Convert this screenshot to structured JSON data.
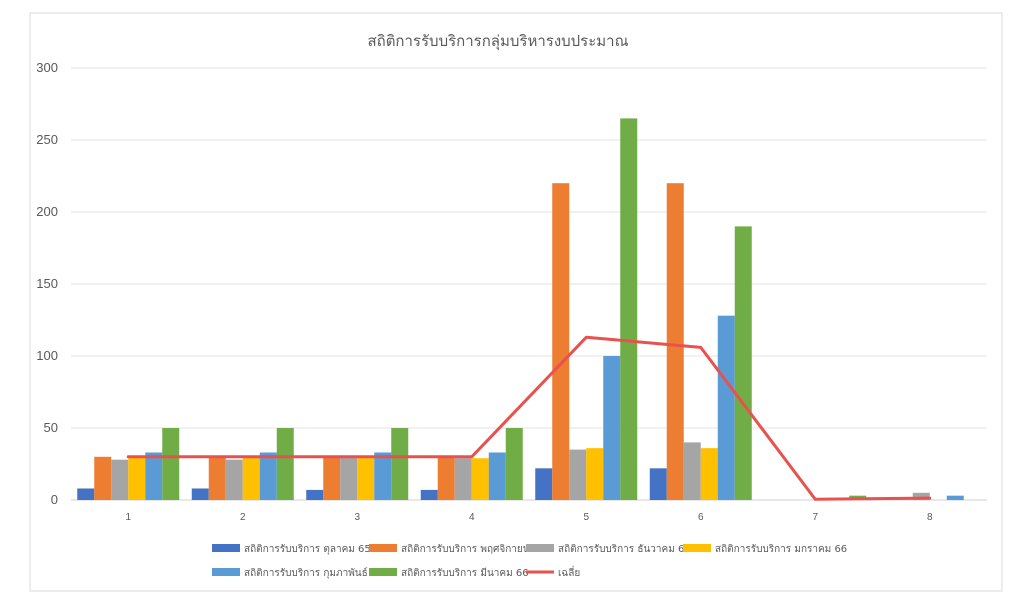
{
  "chart_data": {
    "type": "bar",
    "title": "สถิติการรับบริการกลุ่มบริหารงบประมาณ",
    "xlabel": "",
    "ylabel": "",
    "ylim": [
      0,
      300
    ],
    "yticks": [
      0,
      50,
      100,
      150,
      200,
      250,
      300
    ],
    "grid": true,
    "legend_position": "bottom",
    "categories": [
      "1",
      "2",
      "3",
      "4",
      "5",
      "6",
      "7",
      "8"
    ],
    "series": [
      {
        "name": "สถิติการรับบริการ ตุลาคม 65",
        "color": "#4472C4",
        "values": [
          8,
          8,
          7,
          7,
          22,
          22,
          0,
          0
        ]
      },
      {
        "name": "สถิติการรับบริการ พฤศจิกายน 65",
        "color": "#ED7D31",
        "values": [
          30,
          30,
          30,
          30,
          220,
          220,
          0,
          0
        ]
      },
      {
        "name": "สถิติการรับบริการ ธันวาคม 65",
        "color": "#A5A5A5",
        "values": [
          28,
          28,
          30,
          29,
          35,
          40,
          0,
          5
        ]
      },
      {
        "name": "สถิติการรับบริการ มกราคม 66",
        "color": "#FFC000",
        "values": [
          30,
          30,
          30,
          29,
          36,
          36,
          0,
          0
        ]
      },
      {
        "name": "สถิติการรับบริการ กุมภาพันธ์ 66",
        "color": "#5B9BD5",
        "values": [
          33,
          33,
          33,
          33,
          100,
          128,
          0,
          3
        ]
      },
      {
        "name": "สถิติการรับบริการ มีนาคม 66",
        "color": "#70AD47",
        "values": [
          50,
          50,
          50,
          50,
          265,
          190,
          3,
          0
        ]
      }
    ],
    "line_series": {
      "name": "เฉลี่ย",
      "color": "#E8514D",
      "values": [
        30,
        30,
        30,
        30,
        113,
        106,
        0.5,
        1.3
      ]
    }
  }
}
